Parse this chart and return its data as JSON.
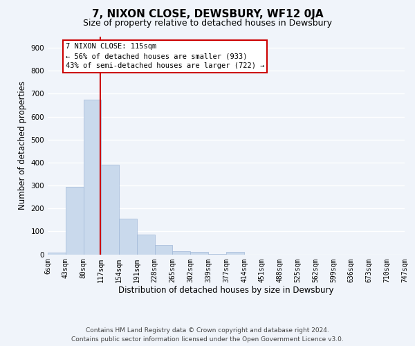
{
  "title": "7, NIXON CLOSE, DEWSBURY, WF12 0JA",
  "subtitle": "Size of property relative to detached houses in Dewsbury",
  "xlabel": "Distribution of detached houses by size in Dewsbury",
  "ylabel": "Number of detached properties",
  "bar_color": "#c9d9ec",
  "bar_edge_color": "#a0b8d8",
  "vline_x": 115,
  "vline_color": "#cc0000",
  "bin_edges": [
    6,
    43,
    80,
    117,
    154,
    191,
    228,
    265,
    302,
    339,
    377,
    414,
    451,
    488,
    525,
    562,
    599,
    636,
    673,
    710,
    747
  ],
  "bar_heights": [
    8,
    295,
    675,
    390,
    155,
    87,
    40,
    15,
    12,
    1,
    10,
    0,
    0,
    0,
    0,
    0,
    0,
    0,
    0,
    0
  ],
  "ylim": [
    0,
    950
  ],
  "yticks": [
    0,
    100,
    200,
    300,
    400,
    500,
    600,
    700,
    800,
    900
  ],
  "tick_labels": [
    "6sqm",
    "43sqm",
    "80sqm",
    "117sqm",
    "154sqm",
    "191sqm",
    "228sqm",
    "265sqm",
    "302sqm",
    "339sqm",
    "377sqm",
    "414sqm",
    "451sqm",
    "488sqm",
    "525sqm",
    "562sqm",
    "599sqm",
    "636sqm",
    "673sqm",
    "710sqm",
    "747sqm"
  ],
  "annotation_title": "7 NIXON CLOSE: 115sqm",
  "annotation_line1": "← 56% of detached houses are smaller (933)",
  "annotation_line2": "43% of semi-detached houses are larger (722) →",
  "footer1": "Contains HM Land Registry data © Crown copyright and database right 2024.",
  "footer2": "Contains public sector information licensed under the Open Government Licence v3.0.",
  "bg_color": "#f0f4fa",
  "plot_bg_color": "#f0f4fa",
  "grid_color": "#ffffff",
  "title_fontsize": 11,
  "subtitle_fontsize": 9,
  "axis_label_fontsize": 8.5,
  "tick_fontsize": 7,
  "footer_fontsize": 6.5,
  "annotation_fontsize": 7.5
}
